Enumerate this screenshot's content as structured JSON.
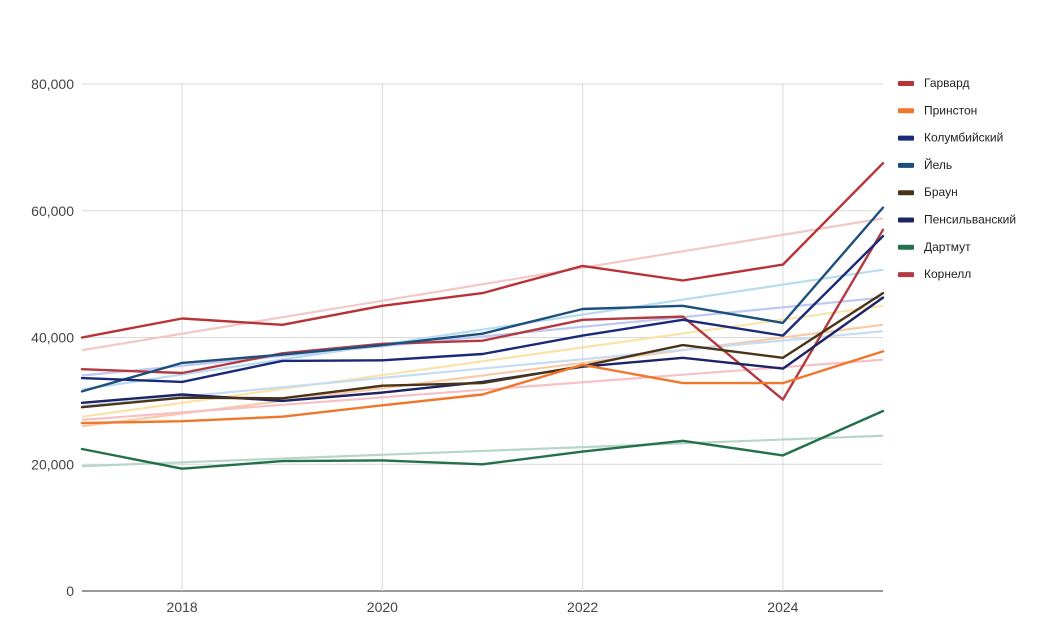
{
  "chart_data": {
    "type": "line",
    "title": "",
    "xlabel": "",
    "ylabel": "",
    "xlim": [
      2017,
      2025
    ],
    "ylim": [
      0,
      80000
    ],
    "x_ticks": [
      2018,
      2020,
      2022,
      2024
    ],
    "y_ticks": [
      0,
      20000,
      40000,
      60000,
      80000
    ],
    "x_tick_labels": [
      "2018",
      "2020",
      "2022",
      "2024"
    ],
    "y_tick_labels": [
      "0",
      "20,000",
      "40,000",
      "60,000",
      "80,000"
    ],
    "grid": true,
    "legend_position": "right",
    "x": [
      2017,
      2018,
      2019,
      2020,
      2021,
      2022,
      2023,
      2024,
      2025
    ],
    "series": [
      {
        "name": "Гарвард",
        "color": "#b83236",
        "values": [
          40000,
          43000,
          42000,
          45000,
          47000,
          51300,
          49000,
          51500,
          67500
        ],
        "trend": [
          38000,
          58800
        ]
      },
      {
        "name": "Принстон",
        "color": "#f0762b",
        "values": [
          26500,
          26800,
          27500,
          29300,
          31000,
          35700,
          32800,
          32800,
          37800
        ],
        "trend": [
          26000,
          42000
        ]
      },
      {
        "name": "Колумбийский",
        "color": "#1a2a78",
        "values": [
          33600,
          33000,
          36300,
          36400,
          37400,
          40300,
          42800,
          40300,
          56000
        ],
        "trend": [
          34000,
          46300
        ]
      },
      {
        "name": "Йель",
        "color": "#1d4f7c",
        "values": [
          31500,
          36000,
          37300,
          38800,
          40600,
          44500,
          45000,
          42300,
          60500
        ],
        "trend": [
          31800,
          50700
        ]
      },
      {
        "name": "Браун",
        "color": "#4a3418",
        "values": [
          29000,
          30500,
          30400,
          32400,
          32800,
          35500,
          38800,
          36800,
          47000
        ],
        "trend": [
          27500,
          45000
        ]
      },
      {
        "name": "Пенсильванский",
        "color": "#1c2466",
        "values": [
          29700,
          31000,
          30000,
          31300,
          33000,
          35400,
          36800,
          35100,
          46300
        ],
        "trend": [
          29200,
          41000
        ]
      },
      {
        "name": "Дартмут",
        "color": "#23704c",
        "values": [
          22400,
          19300,
          20500,
          20600,
          20000,
          22000,
          23700,
          21400,
          28400
        ],
        "trend": [
          19700,
          24500
        ]
      },
      {
        "name": "Корнелл",
        "color": "#b33a41",
        "values": [
          35000,
          34400,
          37500,
          39000,
          39500,
          42800,
          43300,
          30200,
          57000
        ],
        "trend": [
          27000,
          36500
        ]
      }
    ],
    "trendline_colors": [
      "#f4c7c6",
      "#f8cba8",
      "#bfc8f0",
      "#b7dcef",
      "#fbe3a8",
      "#c6dcf2",
      "#b6d6c8",
      "#f6c0c6"
    ]
  }
}
